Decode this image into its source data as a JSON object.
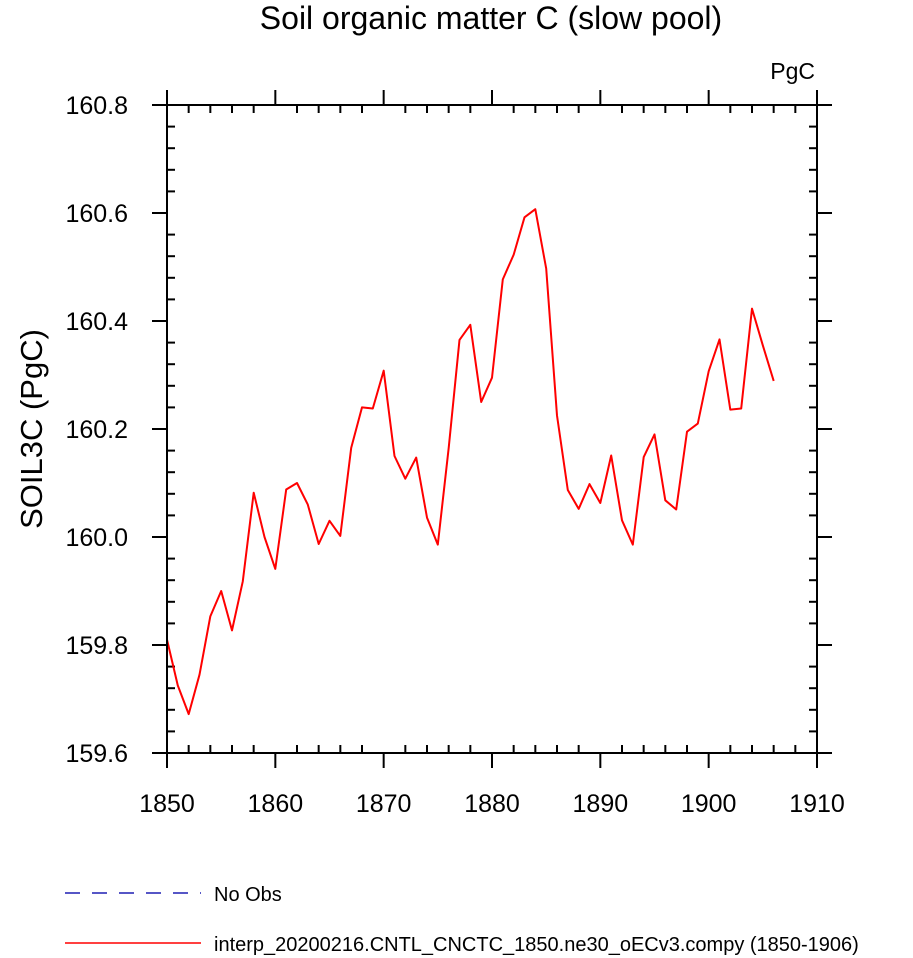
{
  "chart_data": {
    "type": "line",
    "title": "Soil organic matter C (slow pool)",
    "units_label": "PgC",
    "ylabel": "SOIL3C  (PgC)",
    "xlabel": "",
    "xlim": [
      1850,
      1910
    ],
    "ylim": [
      159.6,
      160.8
    ],
    "x_ticks": [
      1850,
      1860,
      1870,
      1880,
      1890,
      1900,
      1910
    ],
    "y_ticks": [
      159.6,
      159.8,
      160.0,
      160.2,
      160.4,
      160.6,
      160.8
    ],
    "x_tick_labels": [
      "1850",
      "1860",
      "1870",
      "1880",
      "1890",
      "1900",
      "1910"
    ],
    "y_tick_labels": [
      "159.6",
      "159.8",
      "160.0",
      "160.2",
      "160.4",
      "160.6",
      "160.8"
    ],
    "grid": false,
    "legend_position": "bottom",
    "series": [
      {
        "name": "interp_20200216.CNTL_CNCTC_1850.ne30_oECv3.compy (1850-1906)",
        "color": "#ff0000",
        "dash": "solid",
        "x": [
          1850,
          1851,
          1852,
          1853,
          1854,
          1855,
          1856,
          1857,
          1858,
          1859,
          1860,
          1861,
          1862,
          1863,
          1864,
          1865,
          1866,
          1867,
          1868,
          1869,
          1870,
          1871,
          1872,
          1873,
          1874,
          1875,
          1876,
          1877,
          1878,
          1879,
          1880,
          1881,
          1882,
          1883,
          1884,
          1885,
          1886,
          1887,
          1888,
          1889,
          1890,
          1891,
          1892,
          1893,
          1894,
          1895,
          1896,
          1897,
          1898,
          1899,
          1900,
          1901,
          1902,
          1903,
          1904,
          1905,
          1906
        ],
        "y": [
          159.81,
          159.725,
          159.672,
          159.745,
          159.853,
          159.9,
          159.827,
          159.918,
          160.082,
          160.0,
          159.941,
          160.088,
          160.1,
          160.06,
          159.987,
          160.03,
          160.002,
          160.165,
          160.24,
          160.238,
          160.308,
          160.15,
          160.108,
          160.147,
          160.036,
          159.986,
          160.165,
          160.365,
          160.393,
          160.25,
          160.295,
          160.477,
          160.523,
          160.592,
          160.607,
          160.497,
          160.225,
          160.087,
          160.052,
          160.098,
          160.063,
          160.151,
          160.031,
          159.986,
          160.148,
          160.19,
          160.068,
          160.051,
          160.195,
          160.21,
          160.307,
          160.366,
          160.236,
          160.238,
          160.423,
          160.355,
          160.289
        ]
      },
      {
        "name": "No Obs",
        "color": "#1f1fb4",
        "dash": "dashed",
        "x": [],
        "y": []
      }
    ]
  }
}
